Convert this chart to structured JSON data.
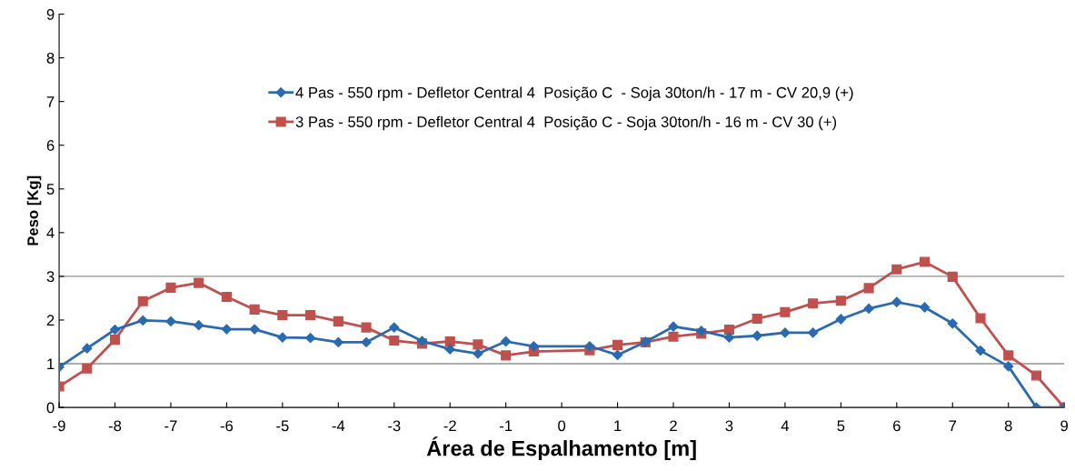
{
  "chart_data": {
    "type": "line",
    "xlabel": "Área de Espalhamento [m]",
    "ylabel": "Peso [Kg]",
    "xlim": [
      -9,
      9
    ],
    "xticks": [
      -9,
      -8,
      -7,
      -6,
      -5,
      -4,
      -3,
      -2,
      -1,
      0,
      1,
      2,
      3,
      4,
      5,
      6,
      7,
      8,
      9
    ],
    "ylim": [
      0,
      9
    ],
    "yticks": [
      0,
      1,
      2,
      3,
      4,
      5,
      6,
      7,
      8,
      9
    ],
    "grid": false,
    "legend": "top",
    "ref_lines": [
      {
        "axis": "y",
        "value": 1,
        "color": "#909090"
      },
      {
        "axis": "y",
        "value": 3,
        "color": "#909090"
      }
    ],
    "series": [
      {
        "name": "4 Pas - 550 rpm - Defletor Central 4  Posição C  - Soja 30ton/h - 17 m - CV 20,9 (+)",
        "color": "#2a6ab0",
        "marker": "diamond",
        "x": [
          -9,
          -8.5,
          -8,
          -7.5,
          -7,
          -6.5,
          -6,
          -5.5,
          -5,
          -4.5,
          -4,
          -3.5,
          -3,
          -2.5,
          -2,
          -1.5,
          -1,
          -0.5,
          0.5,
          1,
          1.5,
          2,
          2.5,
          3,
          3.5,
          4,
          4.5,
          5,
          5.5,
          6,
          6.5,
          7,
          7.5,
          8,
          8.5,
          9
        ],
        "values": [
          0.92,
          1.35,
          1.78,
          1.99,
          1.97,
          1.88,
          1.79,
          1.79,
          1.6,
          1.59,
          1.49,
          1.49,
          1.83,
          1.52,
          1.33,
          1.23,
          1.51,
          1.4,
          1.4,
          1.2,
          1.5,
          1.85,
          1.75,
          1.6,
          1.64,
          1.71,
          1.71,
          2.02,
          2.26,
          2.41,
          2.29,
          1.92,
          1.3,
          0.94,
          0,
          0
        ]
      },
      {
        "name": "3 Pas - 550 rpm - Defletor Central 4  Posição C - Soja 30ton/h - 16 m - CV 30 (+)",
        "color": "#c0504d",
        "marker": "square",
        "x": [
          -9,
          -8.5,
          -8,
          -7.5,
          -7,
          -6.5,
          -6,
          -5.5,
          -5,
          -4.5,
          -4,
          -3.5,
          -3,
          -2.5,
          -2,
          -1.5,
          -1,
          -0.5,
          0.5,
          1,
          1.5,
          2,
          2.5,
          3,
          3.5,
          4,
          4.5,
          5,
          5.5,
          6,
          6.5,
          7,
          7.5,
          8,
          8.5,
          9
        ],
        "values": [
          0.48,
          0.89,
          1.55,
          2.43,
          2.74,
          2.85,
          2.53,
          2.24,
          2.11,
          2.11,
          1.97,
          1.83,
          1.53,
          1.46,
          1.51,
          1.44,
          1.19,
          1.28,
          1.31,
          1.43,
          1.49,
          1.62,
          1.69,
          1.78,
          2.03,
          2.18,
          2.38,
          2.44,
          2.73,
          3.16,
          3.33,
          2.99,
          2.04,
          1.19,
          0.73,
          0
        ]
      }
    ]
  }
}
